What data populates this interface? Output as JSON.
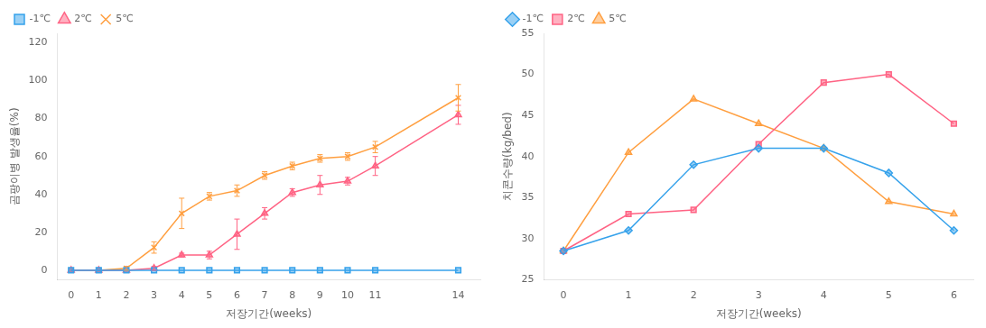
{
  "chart_data": [
    {
      "type": "line",
      "xlabel": "저장기간(weeks)",
      "ylabel": "곰팡이병 발생율(%)",
      "x": [
        0,
        1,
        2,
        3,
        4,
        5,
        6,
        7,
        8,
        9,
        10,
        11,
        14
      ],
      "xlim": [
        -0.5,
        14.8
      ],
      "xticks": [
        0,
        1,
        2,
        3,
        4,
        5,
        6,
        7,
        8,
        9,
        10,
        11,
        14
      ],
      "ylim": [
        -5,
        125
      ],
      "yticks": [
        0,
        20,
        40,
        60,
        80,
        100,
        120
      ],
      "legend": "upper left",
      "grid": false,
      "series": [
        {
          "name": "-1℃",
          "marker": "square",
          "values": [
            0,
            0,
            0,
            0,
            0,
            0,
            0,
            0,
            0,
            0,
            0,
            0,
            0
          ],
          "yerr": [
            0,
            0,
            0,
            0,
            0,
            0,
            0,
            0,
            0,
            0,
            0,
            0,
            0
          ]
        },
        {
          "name": "2℃",
          "marker": "triangle",
          "values": [
            0,
            0,
            0,
            1,
            8,
            8,
            19,
            30,
            41,
            45,
            47,
            55,
            82
          ],
          "yerr": [
            0,
            0,
            0,
            1,
            1,
            2,
            8,
            3,
            2,
            5,
            2,
            5,
            5
          ]
        },
        {
          "name": "5℃",
          "marker": "x",
          "values": [
            0,
            0,
            1,
            12,
            30,
            39,
            42,
            50,
            55,
            59,
            60,
            65,
            91
          ],
          "yerr": [
            0,
            0,
            1,
            3,
            8,
            2,
            3,
            2,
            2,
            2,
            2,
            3,
            7
          ]
        }
      ]
    },
    {
      "type": "line",
      "xlabel": "저장기간(weeks)",
      "ylabel": "치콘수량(kg/bed)",
      "x": [
        0,
        1,
        2,
        3,
        4,
        5,
        6
      ],
      "xlim": [
        -0.3,
        6.3
      ],
      "xticks": [
        0,
        1,
        2,
        3,
        4,
        5,
        6
      ],
      "ylim": [
        25,
        55
      ],
      "yticks": [
        25,
        30,
        35,
        40,
        45,
        50,
        55
      ],
      "legend": "upper left",
      "grid": false,
      "series": [
        {
          "name": "-1℃",
          "marker": "diamond",
          "values": [
            28.5,
            31,
            39,
            41,
            41,
            38,
            31
          ]
        },
        {
          "name": "2℃",
          "marker": "square",
          "values": [
            28.5,
            33,
            33.5,
            41.5,
            49,
            50,
            44
          ]
        },
        {
          "name": "5℃",
          "marker": "triangle",
          "values": [
            28.5,
            40.5,
            47,
            44,
            41,
            34.5,
            33
          ]
        }
      ]
    }
  ]
}
